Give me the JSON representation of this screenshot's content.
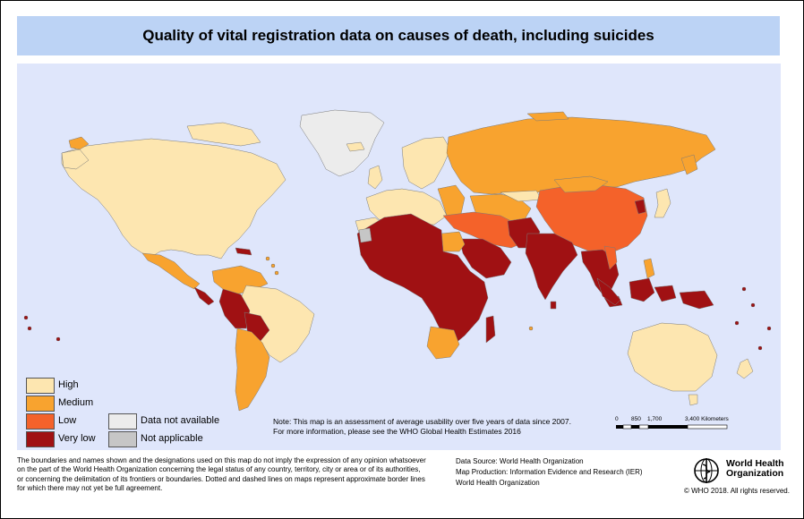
{
  "title": "Quality of vital registration data on causes of death, including suicides",
  "colors": {
    "high": "#fde6b0",
    "medium": "#f8a32f",
    "low": "#f4622a",
    "very_low": "#a01113",
    "data_not_available": "#ececec",
    "not_applicable": "#c6c6c6",
    "ocean": "#dfe6fb",
    "title_bar": "#bcd3f5"
  },
  "legend": {
    "high": "High",
    "medium": "Medium",
    "low": "Low",
    "very_low": "Very low",
    "data_not_available": "Data not available",
    "not_applicable": "Not applicable"
  },
  "note": {
    "line1": "Note: This map is an assessment of average usability over five years of data since 2007.",
    "line2": "For more information, please see the WHO Global Health Estimates 2016"
  },
  "scale": {
    "t0": "0",
    "t1": "850",
    "t2": "1,700",
    "t3": "3,400 Kilometers"
  },
  "disclaimer": {
    "line1": "The boundaries and names shown and the designations used on this map do not imply the expression of any opinion whatsoever",
    "line2": "on the part of the World Health Organization concerning the legal status of any country, territory, city or area or of its authorities,",
    "line3": "or concerning the delimitation of its frontiers or boundaries. Dotted and dashed lines on maps represent approximate border lines",
    "line4": "for which there may not yet be full agreement."
  },
  "credits": {
    "source": "Data Source: World Health Organization",
    "production": "Map Production: Information Evidence and Research (IER)",
    "org": "World Health Organization"
  },
  "logo": {
    "line1": "World Health",
    "line2": "Organization"
  },
  "copyright": "© WHO 2018. All rights reserved."
}
